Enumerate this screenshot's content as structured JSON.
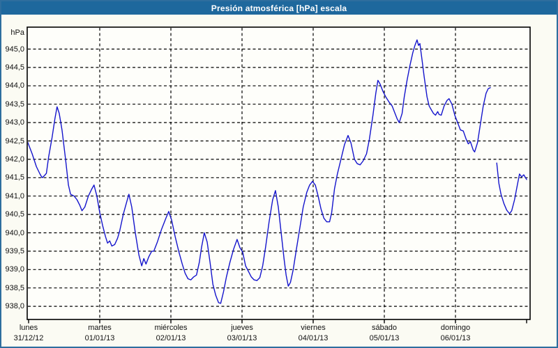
{
  "window": {
    "title": "Presión atmosférica [hPa] escala"
  },
  "colors": {
    "frame": "#2e6e9e",
    "titlebar_bg": "#1e689d",
    "titlebar_text": "#ffffff",
    "outer_bg": "#fbfbf3",
    "plot_bg": "#fefefa",
    "grid": "#000000",
    "axis_border": "#000000",
    "series_line": "#1414cc",
    "label_text": "#111111"
  },
  "y_axis": {
    "unit_label": "hPa",
    "min": 938.0,
    "max": 945.0,
    "step": 0.5,
    "tick_labels": [
      "945,0",
      "944,5",
      "944,0",
      "943,5",
      "943,0",
      "942,5",
      "942,0",
      "941,5",
      "941,0",
      "940,5",
      "940,0",
      "939,5",
      "939,0",
      "938,5",
      "938,0"
    ],
    "tick_values": [
      945.0,
      944.5,
      944.0,
      943.5,
      943.0,
      942.5,
      942.0,
      941.5,
      941.0,
      940.5,
      940.0,
      939.5,
      939.0,
      938.5,
      938.0
    ]
  },
  "x_axis": {
    "days": [
      {
        "name": "lunes",
        "date": "31/12/12"
      },
      {
        "name": "martes",
        "date": "01/01/13"
      },
      {
        "name": "miércoles",
        "date": "02/01/13"
      },
      {
        "name": "jueves",
        "date": "03/01/13"
      },
      {
        "name": "viernes",
        "date": "04/01/13"
      },
      {
        "name": "sábado",
        "date": "05/01/13"
      },
      {
        "name": "domingo",
        "date": "06/01/13"
      }
    ]
  },
  "chart_data": {
    "type": "line",
    "title": "Presión atmosférica [hPa] escala",
    "ylabel": "hPa",
    "ylim": [
      938.0,
      945.0
    ],
    "y_tick_step": 0.5,
    "grid": "dashed",
    "legend": "none",
    "x_unit": "days since lunes 31/12/12 00:00",
    "x_tick_days": [
      "lunes 31/12/12",
      "martes 01/01/13",
      "miércoles 02/01/13",
      "jueves 03/01/13",
      "viernes 04/01/13",
      "sábado 05/01/13",
      "domingo 06/01/13"
    ],
    "series": [
      {
        "name": "Presión atmosférica [hPa]",
        "color": "#1414cc",
        "segments": [
          [
            [
              -0.02,
              942.5
            ],
            [
              0.05,
              942.15
            ],
            [
              0.11,
              941.8
            ],
            [
              0.16,
              941.6
            ],
            [
              0.19,
              941.5
            ],
            [
              0.22,
              941.55
            ],
            [
              0.25,
              941.62
            ],
            [
              0.28,
              942.05
            ],
            [
              0.33,
              942.6
            ],
            [
              0.37,
              943.1
            ],
            [
              0.4,
              943.43
            ],
            [
              0.43,
              943.25
            ],
            [
              0.47,
              942.8
            ],
            [
              0.52,
              942.0
            ],
            [
              0.56,
              941.3
            ],
            [
              0.59,
              941.05
            ],
            [
              0.64,
              941.0
            ],
            [
              0.68,
              940.9
            ],
            [
              0.72,
              940.75
            ],
            [
              0.75,
              940.6
            ],
            [
              0.79,
              940.7
            ],
            [
              0.84,
              941.0
            ],
            [
              0.89,
              941.2
            ],
            [
              0.92,
              941.3
            ],
            [
              0.96,
              941.0
            ],
            [
              1.0,
              940.55
            ],
            [
              1.04,
              940.2
            ],
            [
              1.08,
              939.9
            ],
            [
              1.11,
              939.72
            ],
            [
              1.14,
              939.78
            ],
            [
              1.17,
              939.64
            ],
            [
              1.21,
              939.68
            ],
            [
              1.25,
              939.85
            ],
            [
              1.28,
              940.05
            ],
            [
              1.33,
              940.5
            ],
            [
              1.38,
              940.85
            ],
            [
              1.41,
              941.05
            ],
            [
              1.45,
              940.7
            ],
            [
              1.5,
              940.0
            ],
            [
              1.55,
              939.4
            ],
            [
              1.59,
              939.1
            ],
            [
              1.62,
              939.3
            ],
            [
              1.65,
              939.15
            ],
            [
              1.69,
              939.35
            ],
            [
              1.73,
              939.5
            ],
            [
              1.76,
              939.5
            ],
            [
              1.81,
              939.75
            ],
            [
              1.87,
              940.1
            ],
            [
              1.93,
              940.4
            ],
            [
              1.97,
              940.58
            ],
            [
              2.01,
              940.35
            ],
            [
              2.06,
              939.9
            ],
            [
              2.11,
              939.5
            ],
            [
              2.16,
              939.15
            ],
            [
              2.2,
              938.9
            ],
            [
              2.24,
              938.75
            ],
            [
              2.28,
              938.72
            ],
            [
              2.32,
              938.8
            ],
            [
              2.36,
              938.85
            ],
            [
              2.4,
              939.2
            ],
            [
              2.43,
              939.6
            ],
            [
              2.47,
              940.0
            ],
            [
              2.51,
              939.75
            ],
            [
              2.55,
              939.2
            ],
            [
              2.59,
              938.6
            ],
            [
              2.63,
              938.3
            ],
            [
              2.67,
              938.1
            ],
            [
              2.7,
              938.08
            ],
            [
              2.74,
              938.4
            ],
            [
              2.78,
              938.8
            ],
            [
              2.83,
              939.2
            ],
            [
              2.88,
              939.55
            ],
            [
              2.93,
              939.82
            ],
            [
              2.97,
              939.6
            ],
            [
              3.01,
              939.47
            ],
            [
              3.05,
              939.1
            ],
            [
              3.09,
              938.95
            ],
            [
              3.13,
              938.8
            ],
            [
              3.17,
              938.72
            ],
            [
              3.21,
              938.7
            ],
            [
              3.25,
              938.78
            ],
            [
              3.29,
              939.1
            ],
            [
              3.33,
              939.6
            ],
            [
              3.38,
              940.3
            ],
            [
              3.43,
              940.9
            ],
            [
              3.47,
              941.15
            ],
            [
              3.51,
              940.7
            ],
            [
              3.55,
              940.0
            ],
            [
              3.59,
              939.3
            ],
            [
              3.62,
              938.85
            ],
            [
              3.65,
              938.55
            ],
            [
              3.68,
              938.65
            ],
            [
              3.72,
              939.0
            ],
            [
              3.76,
              939.5
            ],
            [
              3.81,
              940.1
            ],
            [
              3.86,
              940.7
            ],
            [
              3.91,
              941.1
            ],
            [
              3.95,
              941.3
            ],
            [
              3.99,
              941.4
            ],
            [
              4.03,
              941.3
            ],
            [
              4.07,
              941.0
            ],
            [
              4.11,
              940.65
            ],
            [
              4.15,
              940.4
            ],
            [
              4.19,
              940.3
            ],
            [
              4.23,
              940.3
            ],
            [
              4.26,
              940.55
            ],
            [
              4.3,
              941.2
            ],
            [
              4.34,
              941.6
            ],
            [
              4.39,
              942.0
            ],
            [
              4.44,
              942.4
            ],
            [
              4.49,
              942.65
            ],
            [
              4.53,
              942.45
            ],
            [
              4.58,
              942.0
            ],
            [
              4.62,
              941.88
            ],
            [
              4.66,
              941.85
            ],
            [
              4.7,
              941.95
            ],
            [
              4.75,
              942.15
            ],
            [
              4.79,
              942.55
            ],
            [
              4.84,
              943.2
            ],
            [
              4.88,
              943.8
            ],
            [
              4.91,
              944.15
            ],
            [
              4.94,
              944.05
            ],
            [
              4.98,
              943.85
            ],
            [
              5.02,
              943.7
            ],
            [
              5.07,
              943.55
            ],
            [
              5.11,
              943.45
            ],
            [
              5.15,
              943.25
            ],
            [
              5.18,
              943.1
            ],
            [
              5.21,
              943.0
            ],
            [
              5.25,
              943.25
            ],
            [
              5.28,
              943.7
            ],
            [
              5.32,
              944.15
            ],
            [
              5.36,
              944.55
            ],
            [
              5.4,
              944.9
            ],
            [
              5.43,
              945.1
            ],
            [
              5.46,
              945.25
            ],
            [
              5.48,
              945.1
            ],
            [
              5.5,
              945.15
            ],
            [
              5.53,
              944.7
            ],
            [
              5.56,
              944.25
            ],
            [
              5.6,
              943.7
            ],
            [
              5.63,
              943.45
            ],
            [
              5.66,
              943.35
            ],
            [
              5.69,
              943.25
            ],
            [
              5.72,
              943.2
            ],
            [
              5.75,
              943.3
            ],
            [
              5.77,
              943.22
            ],
            [
              5.8,
              943.2
            ],
            [
              5.84,
              943.45
            ],
            [
              5.88,
              943.6
            ],
            [
              5.91,
              943.65
            ],
            [
              5.95,
              943.5
            ],
            [
              5.99,
              943.2
            ],
            [
              6.03,
              943.0
            ],
            [
              6.07,
              942.8
            ],
            [
              6.11,
              942.77
            ],
            [
              6.15,
              942.55
            ],
            [
              6.18,
              942.42
            ],
            [
              6.21,
              942.48
            ],
            [
              6.25,
              942.25
            ],
            [
              6.27,
              942.2
            ],
            [
              6.31,
              942.45
            ],
            [
              6.35,
              942.95
            ],
            [
              6.39,
              943.45
            ],
            [
              6.43,
              943.8
            ],
            [
              6.46,
              943.92
            ],
            [
              6.49,
              943.95
            ]
          ],
          [
            [
              6.58,
              941.9
            ],
            [
              6.61,
              941.35
            ],
            [
              6.64,
              941.05
            ],
            [
              6.68,
              940.8
            ],
            [
              6.72,
              940.62
            ],
            [
              6.76,
              940.52
            ],
            [
              6.79,
              940.6
            ],
            [
              6.83,
              940.9
            ],
            [
              6.87,
              941.3
            ],
            [
              6.9,
              941.6
            ],
            [
              6.93,
              941.52
            ],
            [
              6.96,
              941.58
            ],
            [
              7.0,
              941.45
            ]
          ]
        ]
      }
    ]
  }
}
